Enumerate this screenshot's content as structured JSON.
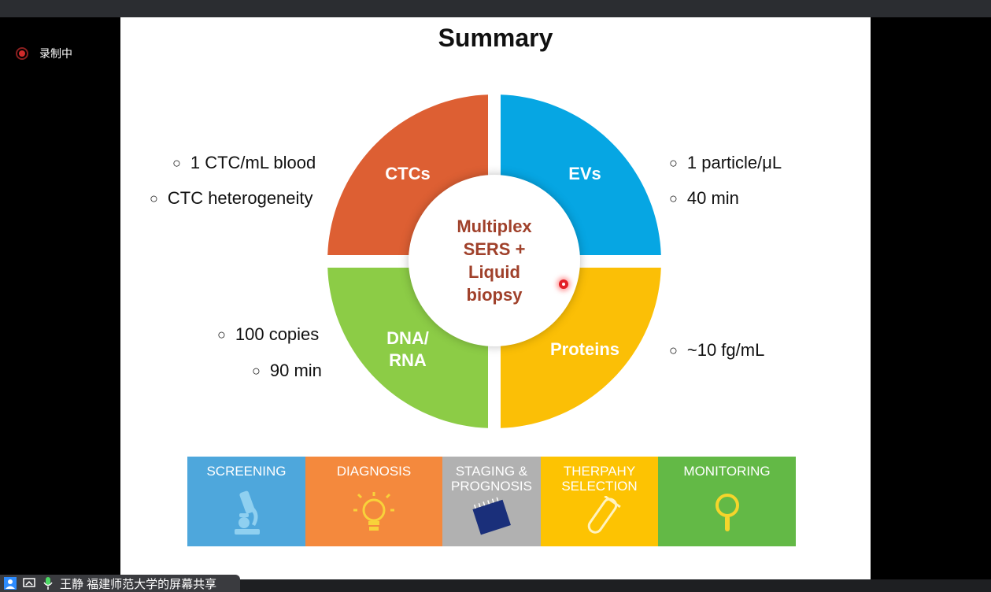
{
  "recording": {
    "label": "录制中"
  },
  "slide": {
    "title": "Summary",
    "center_text": "Multiplex SERS + Liquid biopsy",
    "quadrants": [
      {
        "label": "CTCs",
        "color": "#dd5f33"
      },
      {
        "label": "EVs",
        "color": "#06a6e3"
      },
      {
        "label": "DNA/\nRNA",
        "color": "#8ccc46"
      },
      {
        "label": "Proteins",
        "color": "#fbbf06"
      }
    ],
    "bullets": {
      "ctcs": [
        "1 CTC/mL blood",
        "CTC heterogeneity"
      ],
      "evs": [
        "1 particle/μL",
        "40 min"
      ],
      "dna": [
        "100 copies",
        "90 min"
      ],
      "proteins": [
        "~10 fg/mL"
      ]
    },
    "bullet_marker": "○",
    "stages": [
      {
        "label": "SCREENING",
        "color": "#4ea7dc",
        "icon": "microscope-icon"
      },
      {
        "label": "DIAGNOSIS",
        "color": "#f4893d",
        "icon": "lightbulb-icon"
      },
      {
        "label": "STAGING &\nPROGNOSIS",
        "color": "#b1b1b1",
        "icon": "notepad-icon"
      },
      {
        "label": "THERPAHY\nSELECTION",
        "color": "#fdc302",
        "icon": "test-tube-icon"
      },
      {
        "label": "MONITORING",
        "color": "#63b946",
        "icon": "magnifier-icon"
      }
    ]
  },
  "share_bar": {
    "text": "王静 福建师范大学的屏幕共享"
  }
}
